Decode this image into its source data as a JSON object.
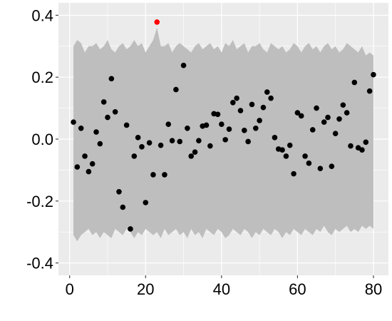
{
  "chart_data": {
    "type": "scatter",
    "title": "",
    "xlabel": "",
    "ylabel": "",
    "xlim": [
      -2.95,
      83.95
    ],
    "ylim": [
      -0.44,
      0.44
    ],
    "x_ticks": [
      0,
      20,
      40,
      60,
      80
    ],
    "x_tick_labels": [
      "0",
      "20",
      "40",
      "60",
      "80"
    ],
    "y_ticks": [
      -0.4,
      -0.2,
      0.0,
      0.2,
      0.4
    ],
    "y_tick_labels": [
      "-0.4",
      "-0.2",
      "0.0",
      "0.2",
      "0.4"
    ],
    "grid": true,
    "colors": {
      "panel": "#ebebeb",
      "grid": "#ffffff",
      "band": "#bebebe",
      "point": "#000000",
      "highlight": "#ff0000"
    },
    "band": {
      "x": [
        1,
        2,
        3,
        4,
        5,
        6,
        7,
        8,
        9,
        10,
        11,
        12,
        13,
        14,
        15,
        16,
        17,
        18,
        19,
        20,
        21,
        22,
        23,
        24,
        25,
        26,
        27,
        28,
        29,
        30,
        31,
        32,
        33,
        34,
        35,
        36,
        37,
        38,
        39,
        40,
        41,
        42,
        43,
        44,
        45,
        46,
        47,
        48,
        49,
        50,
        51,
        52,
        53,
        54,
        55,
        56,
        57,
        58,
        59,
        60,
        61,
        62,
        63,
        64,
        65,
        66,
        67,
        68,
        69,
        70,
        71,
        72,
        73,
        74,
        75,
        76,
        77,
        78,
        79,
        80
      ],
      "upper": [
        0.3,
        0.32,
        0.31,
        0.28,
        0.3,
        0.3,
        0.31,
        0.29,
        0.3,
        0.32,
        0.29,
        0.28,
        0.3,
        0.31,
        0.29,
        0.3,
        0.32,
        0.3,
        0.31,
        0.28,
        0.3,
        0.32,
        0.36,
        0.3,
        0.3,
        0.31,
        0.28,
        0.3,
        0.31,
        0.3,
        0.29,
        0.28,
        0.3,
        0.31,
        0.29,
        0.3,
        0.31,
        0.29,
        0.3,
        0.28,
        0.31,
        0.3,
        0.32,
        0.29,
        0.3,
        0.31,
        0.28,
        0.3,
        0.3,
        0.31,
        0.29,
        0.28,
        0.31,
        0.3,
        0.29,
        0.3,
        0.28,
        0.29,
        0.31,
        0.3,
        0.28,
        0.3,
        0.31,
        0.29,
        0.3,
        0.28,
        0.3,
        0.31,
        0.29,
        0.3,
        0.28,
        0.29,
        0.31,
        0.3,
        0.29,
        0.28,
        0.3,
        0.27,
        0.28,
        0.27
      ],
      "lower": [
        -0.31,
        -0.33,
        -0.31,
        -0.3,
        -0.29,
        -0.31,
        -0.3,
        -0.32,
        -0.3,
        -0.31,
        -0.32,
        -0.29,
        -0.3,
        -0.31,
        -0.29,
        -0.3,
        -0.32,
        -0.3,
        -0.31,
        -0.29,
        -0.3,
        -0.31,
        -0.3,
        -0.32,
        -0.29,
        -0.31,
        -0.3,
        -0.29,
        -0.31,
        -0.3,
        -0.32,
        -0.29,
        -0.31,
        -0.3,
        -0.32,
        -0.29,
        -0.3,
        -0.31,
        -0.29,
        -0.3,
        -0.32,
        -0.31,
        -0.29,
        -0.3,
        -0.31,
        -0.29,
        -0.3,
        -0.32,
        -0.3,
        -0.31,
        -0.29,
        -0.3,
        -0.31,
        -0.29,
        -0.3,
        -0.32,
        -0.3,
        -0.31,
        -0.29,
        -0.3,
        -0.31,
        -0.29,
        -0.3,
        -0.31,
        -0.29,
        -0.3,
        -0.28,
        -0.3,
        -0.31,
        -0.29,
        -0.3,
        -0.29,
        -0.28,
        -0.3,
        -0.29,
        -0.3,
        -0.28,
        -0.29,
        -0.28,
        -0.29
      ]
    },
    "series": [
      {
        "x": [
          1,
          2,
          3,
          4,
          5,
          6,
          7,
          8,
          9,
          10,
          11,
          12,
          13,
          14,
          15,
          16,
          17,
          18,
          19,
          20,
          21,
          22,
          23,
          24,
          25,
          26,
          27,
          28,
          29,
          30,
          31,
          32,
          33,
          34,
          35,
          36,
          37,
          38,
          39,
          40,
          41,
          42,
          43,
          44,
          45,
          46,
          47,
          48,
          49,
          50,
          51,
          52,
          53,
          54,
          55,
          56,
          57,
          58,
          59,
          60,
          61,
          62,
          63,
          64,
          65,
          66,
          67,
          68,
          69,
          70,
          71,
          72,
          73,
          74,
          75,
          76,
          77,
          78,
          79,
          80
        ],
        "y": [
          0.055,
          -0.09,
          0.035,
          -0.055,
          -0.105,
          -0.08,
          0.023,
          -0.015,
          0.12,
          0.07,
          0.195,
          0.088,
          -0.17,
          -0.22,
          0.045,
          -0.29,
          -0.055,
          0.005,
          -0.025,
          -0.205,
          -0.012,
          -0.115,
          0.378,
          -0.02,
          -0.115,
          0.048,
          -0.005,
          0.16,
          -0.008,
          0.238,
          0.035,
          -0.055,
          -0.042,
          -0.005,
          0.042,
          0.045,
          -0.022,
          0.082,
          0.08,
          0.048,
          -0.002,
          0.032,
          0.118,
          0.132,
          0.092,
          0.028,
          -0.008,
          0.112,
          0.035,
          0.06,
          0.102,
          0.152,
          0.132,
          0.005,
          -0.032,
          -0.035,
          -0.055,
          -0.02,
          -0.112,
          0.085,
          0.075,
          -0.055,
          -0.078,
          0.03,
          0.1,
          -0.095,
          0.055,
          0.07,
          -0.088,
          0.018,
          0.065,
          0.11,
          0.085,
          -0.022,
          0.183,
          -0.028,
          -0.035,
          -0.01,
          0.155,
          0.208
        ]
      }
    ],
    "highlight_index": 22
  }
}
